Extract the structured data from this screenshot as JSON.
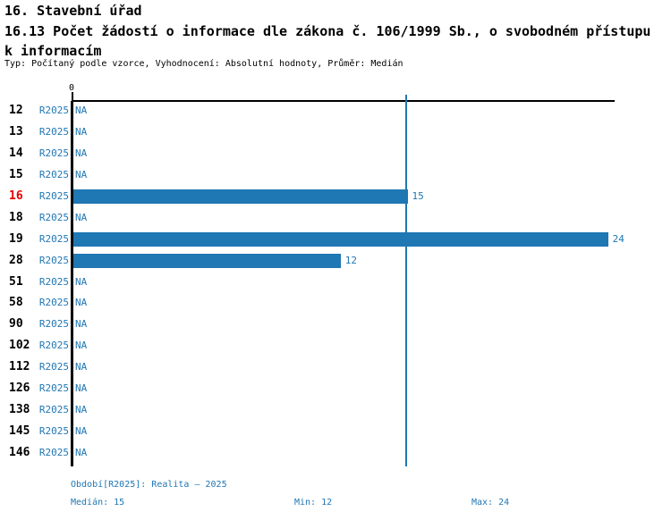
{
  "header": {
    "title": "16. Stavební úřad",
    "subtitle": "16.13 Počet žádostí o informace dle zákona č. 106/1999 Sb., o svobodném přístupu k informacím",
    "meta": "Typ: Počítaný podle vzorce, Vyhodnocení: Absolutní hodnoty, Průměr: Medián"
  },
  "chart_data": {
    "type": "bar",
    "orientation": "horizontal",
    "title": "16.13 Počet žádostí o informace dle zákona č. 106/1999 Sb., o svobodném přístupu k informacím",
    "xlabel": "",
    "ylabel": "",
    "xlim": [
      0,
      24.2
    ],
    "x_ticks": [
      "0"
    ],
    "grid": false,
    "legend": "none",
    "na_label": "NA",
    "median_reference_line": 15,
    "highlighted_category": "16",
    "categories": [
      "12",
      "13",
      "14",
      "15",
      "16",
      "18",
      "19",
      "28",
      "51",
      "58",
      "90",
      "102",
      "112",
      "126",
      "138",
      "145",
      "146"
    ],
    "series": [
      {
        "name": "R2025",
        "values": [
          null,
          null,
          null,
          null,
          15,
          null,
          24,
          12,
          null,
          null,
          null,
          null,
          null,
          null,
          null,
          null,
          null
        ]
      }
    ],
    "rows": [
      {
        "label": "12",
        "period": "R2025",
        "value": null,
        "highlight": false
      },
      {
        "label": "13",
        "period": "R2025",
        "value": null,
        "highlight": false
      },
      {
        "label": "14",
        "period": "R2025",
        "value": null,
        "highlight": false
      },
      {
        "label": "15",
        "period": "R2025",
        "value": null,
        "highlight": false
      },
      {
        "label": "16",
        "period": "R2025",
        "value": 15,
        "highlight": true
      },
      {
        "label": "18",
        "period": "R2025",
        "value": null,
        "highlight": false
      },
      {
        "label": "19",
        "period": "R2025",
        "value": 24,
        "highlight": false
      },
      {
        "label": "28",
        "period": "R2025",
        "value": 12,
        "highlight": false
      },
      {
        "label": "51",
        "period": "R2025",
        "value": null,
        "highlight": false
      },
      {
        "label": "58",
        "period": "R2025",
        "value": null,
        "highlight": false
      },
      {
        "label": "90",
        "period": "R2025",
        "value": null,
        "highlight": false
      },
      {
        "label": "102",
        "period": "R2025",
        "value": null,
        "highlight": false
      },
      {
        "label": "112",
        "period": "R2025",
        "value": null,
        "highlight": false
      },
      {
        "label": "126",
        "period": "R2025",
        "value": null,
        "highlight": false
      },
      {
        "label": "138",
        "period": "R2025",
        "value": null,
        "highlight": false
      },
      {
        "label": "145",
        "period": "R2025",
        "value": null,
        "highlight": false
      },
      {
        "label": "146",
        "period": "R2025",
        "value": null,
        "highlight": false
      }
    ],
    "colors": {
      "bar": "#1f77b4",
      "blue_text": "#2077b4",
      "highlight_red": "#e60000",
      "axis": "#000000"
    }
  },
  "footer": {
    "period_line": "Období[R2025]: Realita – 2025",
    "median_label": "Medián: 15",
    "min_label": "Min: 12",
    "max_label": "Max: 24"
  }
}
